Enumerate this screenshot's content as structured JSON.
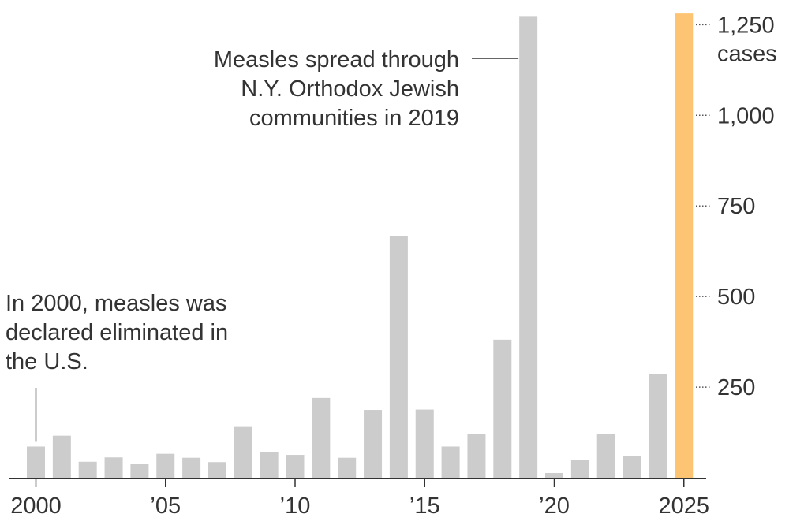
{
  "chart_data": {
    "type": "bar",
    "title": "",
    "xlabel": "",
    "ylabel": "cases",
    "ylim": [
      0,
      1280
    ],
    "y_ticks": [
      250,
      500,
      750,
      1000,
      1250
    ],
    "y_tick_labels": [
      "250",
      "500",
      "750",
      "1,000",
      "1,250"
    ],
    "y_unit_label": "cases",
    "categories": [
      "2000",
      "2001",
      "2002",
      "2003",
      "2004",
      "2005",
      "2006",
      "2007",
      "2008",
      "2009",
      "2010",
      "2011",
      "2012",
      "2013",
      "2014",
      "2015",
      "2016",
      "2017",
      "2018",
      "2019",
      "2020",
      "2021",
      "2022",
      "2023",
      "2024",
      "2025"
    ],
    "values": [
      86,
      116,
      44,
      56,
      37,
      66,
      55,
      43,
      140,
      71,
      63,
      220,
      55,
      187,
      667,
      188,
      86,
      120,
      381,
      1274,
      13,
      49,
      121,
      59,
      285,
      1281
    ],
    "x_tick_labels": [
      {
        "year": "2000",
        "label": "2000"
      },
      {
        "year": "2005",
        "label": "’05"
      },
      {
        "year": "2010",
        "label": "’10"
      },
      {
        "year": "2015",
        "label": "’15"
      },
      {
        "year": "2020",
        "label": "’20"
      },
      {
        "year": "2025",
        "label": "2025"
      }
    ],
    "highlight": {
      "year": "2025",
      "color": "#fdc473"
    },
    "colors": {
      "bar": "#cccccc",
      "highlight": "#fdc473",
      "axis": "#333333",
      "text": "#333333",
      "tick_dots": "#555555"
    },
    "annotations": [
      {
        "id": "outbreak-2019",
        "year": "2019",
        "lines": [
          "Measles spread through",
          "N.Y. Orthodox Jewish",
          "communities in 2019"
        ]
      },
      {
        "id": "elimination-2000",
        "year": "2000",
        "lines": [
          "In 2000, measles was",
          "declared eliminated in",
          "the U.S."
        ]
      }
    ]
  }
}
